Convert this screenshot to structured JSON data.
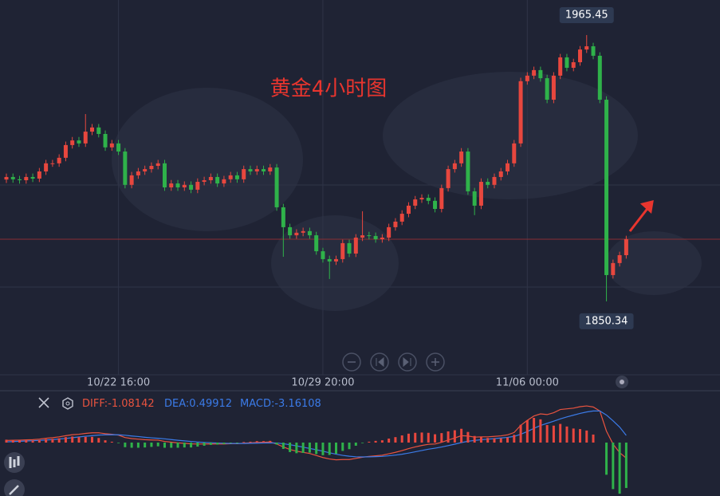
{
  "chart_data": [
    {
      "type": "candlestick",
      "title": "黄金4小时图",
      "categories": [
        null,
        null,
        null,
        null,
        null,
        null,
        null,
        null,
        null,
        null,
        null,
        null,
        null,
        null,
        null,
        null,
        null,
        "10/22 16:00",
        null,
        null,
        null,
        null,
        null,
        null,
        null,
        null,
        null,
        null,
        null,
        null,
        null,
        null,
        null,
        null,
        null,
        null,
        null,
        null,
        null,
        null,
        null,
        null,
        null,
        null,
        null,
        null,
        null,
        null,
        "10/29 20:00",
        null,
        null,
        null,
        null,
        null,
        null,
        null,
        null,
        null,
        null,
        null,
        null,
        null,
        null,
        null,
        null,
        null,
        null,
        null,
        null,
        null,
        null,
        null,
        null,
        null,
        null,
        null,
        null,
        null,
        null,
        "11/06 00:00",
        null,
        null,
        null,
        null,
        null,
        null,
        null,
        null,
        null,
        null,
        null,
        null,
        null,
        null,
        null
      ],
      "open": [
        1903.0,
        1904.1,
        1903.1,
        1902.7,
        1904.1,
        1903.4,
        1906.5,
        1910.0,
        1910.0,
        1912.4,
        1917.9,
        1919.9,
        1918.6,
        1923.7,
        1925.5,
        1922.7,
        1916.9,
        1918.6,
        1915.1,
        1900.7,
        1904.8,
        1906.5,
        1907.5,
        1908.9,
        1910.0,
        1899.6,
        1901.3,
        1899.6,
        1900.7,
        1898.6,
        1902.0,
        1902.7,
        1904.1,
        1901.3,
        1903.1,
        1904.8,
        1903.1,
        1907.5,
        1906.5,
        1907.5,
        1906.5,
        1908.2,
        1891.0,
        1882.4,
        1878.9,
        1880.0,
        1880.7,
        1878.9,
        1872.0,
        1868.6,
        1867.6,
        1868.6,
        1875.5,
        1871.0,
        1877.9,
        1878.9,
        1878.6,
        1877.2,
        1877.9,
        1882.4,
        1884.8,
        1888.2,
        1891.7,
        1894.4,
        1895.1,
        1893.8,
        1890.3,
        1899.3,
        1907.5,
        1910.0,
        1915.1,
        1897.9,
        1891.7,
        1902.0,
        1900.7,
        1904.1,
        1906.5,
        1910.0,
        1918.6,
        1945.5,
        1947.9,
        1950.3,
        1946.8,
        1937.5,
        1947.9,
        1955.8,
        1951.3,
        1953.7,
        1959.2,
        1960.6,
        1956.5,
        1937.5,
        1861.7,
        1866.9,
        1870.3
      ],
      "high": [
        1905.6,
        1905.6,
        1904.6,
        1905.6,
        1905.6,
        1908.0,
        1911.5,
        1911.5,
        1913.9,
        1919.4,
        1921.4,
        1921.4,
        1931.3,
        1927.0,
        1927.0,
        1924.2,
        1920.1,
        1920.1,
        1916.6,
        1906.3,
        1908.0,
        1909.0,
        1910.4,
        1911.5,
        1911.5,
        1902.8,
        1902.8,
        1902.2,
        1902.2,
        1903.5,
        1904.2,
        1905.6,
        1905.6,
        1904.6,
        1906.3,
        1906.3,
        1909.0,
        1909.0,
        1909.0,
        1909.0,
        1909.7,
        1909.7,
        1892.5,
        1883.9,
        1881.5,
        1882.2,
        1882.2,
        1880.4,
        1873.5,
        1870.1,
        1870.1,
        1877.0,
        1877.0,
        1879.4,
        1889.3,
        1880.4,
        1880.1,
        1879.4,
        1883.9,
        1886.3,
        1889.7,
        1893.2,
        1895.9,
        1896.6,
        1896.6,
        1895.3,
        1900.8,
        1909.0,
        1911.5,
        1916.6,
        1916.6,
        1899.4,
        1903.5,
        1903.5,
        1905.6,
        1908.0,
        1911.5,
        1920.1,
        1947.0,
        1949.4,
        1951.8,
        1951.8,
        1948.3,
        1949.4,
        1957.3,
        1957.3,
        1955.2,
        1960.7,
        1965.45,
        1962.1,
        1958.0,
        1939.0,
        1868.4,
        1871.8,
        1878.7
      ],
      "low": [
        1901.5,
        1901.6,
        1901.2,
        1901.2,
        1901.9,
        1901.9,
        1905.0,
        1908.5,
        1908.5,
        1910.9,
        1916.4,
        1917.1,
        1917.1,
        1922.2,
        1921.2,
        1915.4,
        1915.4,
        1913.6,
        1899.2,
        1899.2,
        1903.3,
        1905.0,
        1906.0,
        1907.4,
        1898.1,
        1898.1,
        1898.1,
        1898.1,
        1897.1,
        1897.1,
        1900.5,
        1901.2,
        1899.8,
        1899.8,
        1901.6,
        1901.6,
        1901.6,
        1905.0,
        1905.0,
        1905.0,
        1905.0,
        1889.5,
        1869.6,
        1877.4,
        1877.4,
        1878.5,
        1877.4,
        1870.5,
        1867.1,
        1860.0,
        1866.1,
        1867.1,
        1869.5,
        1869.5,
        1876.4,
        1877.1,
        1875.7,
        1875.7,
        1876.4,
        1880.9,
        1883.3,
        1886.7,
        1890.2,
        1892.9,
        1892.3,
        1888.8,
        1888.8,
        1897.8,
        1906.0,
        1908.5,
        1896.4,
        1887.6,
        1890.2,
        1899.2,
        1899.2,
        1902.6,
        1905.0,
        1908.5,
        1917.1,
        1944.0,
        1946.4,
        1945.3,
        1936.0,
        1936.0,
        1946.4,
        1949.8,
        1949.8,
        1952.2,
        1957.7,
        1955.0,
        1936.0,
        1850.34,
        1860.2,
        1865.4,
        1868.8
      ],
      "close": [
        1904.1,
        1903.1,
        1902.7,
        1904.1,
        1903.4,
        1906.5,
        1910.0,
        1910.0,
        1912.4,
        1917.9,
        1919.9,
        1918.6,
        1923.7,
        1925.5,
        1922.7,
        1916.9,
        1918.6,
        1915.1,
        1900.7,
        1904.8,
        1906.5,
        1907.5,
        1908.9,
        1910.0,
        1899.6,
        1901.3,
        1899.6,
        1900.7,
        1898.6,
        1902.0,
        1902.7,
        1904.1,
        1901.3,
        1903.1,
        1904.8,
        1903.1,
        1907.5,
        1906.5,
        1907.5,
        1906.5,
        1908.2,
        1891.0,
        1882.4,
        1878.9,
        1880.0,
        1880.7,
        1878.9,
        1872.0,
        1868.6,
        1867.6,
        1868.6,
        1875.5,
        1871.0,
        1877.9,
        1878.9,
        1878.6,
        1877.2,
        1877.9,
        1882.4,
        1884.8,
        1888.2,
        1891.7,
        1894.4,
        1895.1,
        1893.8,
        1890.3,
        1899.3,
        1907.5,
        1910.0,
        1915.1,
        1897.9,
        1891.7,
        1902.0,
        1900.7,
        1904.1,
        1906.5,
        1910.0,
        1918.6,
        1945.5,
        1947.9,
        1950.3,
        1946.8,
        1937.5,
        1947.9,
        1955.8,
        1951.3,
        1953.7,
        1959.2,
        1960.6,
        1956.5,
        1937.5,
        1861.7,
        1866.9,
        1870.3,
        1877.2
      ],
      "up_color": "#e8473e",
      "down_color": "#2fb24a",
      "ylim": [
        1818.6,
        1980.6
      ]
    },
    {
      "type": "macd",
      "series": [
        {
          "name": "DIFF:",
          "type": "line",
          "color": "#e8533f",
          "values": [
            0.15,
            0.16,
            0.17,
            0.19,
            0.2,
            0.24,
            0.3,
            0.34,
            0.4,
            0.48,
            0.55,
            0.58,
            0.64,
            0.68,
            0.68,
            0.62,
            0.58,
            0.52,
            0.35,
            0.28,
            0.24,
            0.2,
            0.18,
            0.17,
            0.08,
            0.03,
            -0.02,
            -0.05,
            -0.09,
            -0.1,
            -0.1,
            -0.09,
            -0.1,
            -0.1,
            -0.08,
            -0.08,
            -0.04,
            -0.02,
            0.01,
            0.02,
            0.04,
            -0.1,
            -0.3,
            -0.48,
            -0.6,
            -0.68,
            -0.76,
            -0.9,
            -1.04,
            -1.14,
            -1.2,
            -1.18,
            -1.18,
            -1.1,
            -1.02,
            -0.96,
            -0.92,
            -0.88,
            -0.78,
            -0.68,
            -0.56,
            -0.42,
            -0.3,
            -0.2,
            -0.12,
            -0.1,
            0.02,
            0.18,
            0.32,
            0.48,
            0.46,
            0.38,
            0.4,
            0.4,
            0.43,
            0.47,
            0.54,
            0.7,
            1.2,
            1.55,
            1.85,
            2.0,
            1.95,
            2.08,
            2.3,
            2.35,
            2.4,
            2.5,
            2.55,
            2.48,
            2.2,
            0.8,
            -0.1,
            -0.7,
            -1.08142
          ]
        },
        {
          "name": "DEA:",
          "type": "line",
          "color": "#3b7be8",
          "values": [
            0.05,
            0.07,
            0.09,
            0.11,
            0.13,
            0.15,
            0.18,
            0.21,
            0.25,
            0.29,
            0.34,
            0.39,
            0.44,
            0.48,
            0.52,
            0.54,
            0.55,
            0.54,
            0.51,
            0.46,
            0.42,
            0.37,
            0.33,
            0.3,
            0.26,
            0.21,
            0.16,
            0.12,
            0.08,
            0.04,
            0.01,
            -0.01,
            -0.03,
            -0.05,
            -0.06,
            -0.06,
            -0.06,
            -0.05,
            -0.04,
            -0.03,
            -0.02,
            -0.03,
            -0.08,
            -0.15,
            -0.23,
            -0.32,
            -0.41,
            -0.5,
            -0.6,
            -0.71,
            -0.81,
            -0.89,
            -0.95,
            -0.99,
            -1.0,
            -0.99,
            -0.98,
            -0.96,
            -0.92,
            -0.87,
            -0.81,
            -0.73,
            -0.64,
            -0.55,
            -0.46,
            -0.39,
            -0.31,
            -0.21,
            -0.11,
            0.0,
            0.09,
            0.15,
            0.2,
            0.24,
            0.28,
            0.32,
            0.36,
            0.43,
            0.58,
            0.77,
            0.99,
            1.19,
            1.34,
            1.49,
            1.65,
            1.79,
            1.91,
            2.03,
            2.13,
            2.2,
            2.2,
            1.92,
            1.52,
            1.08,
            0.49912
          ]
        },
        {
          "name": "MACD:",
          "type": "bar",
          "color": "#3b7be8",
          "up_color": "#e8473e",
          "down_color": "#2fb24a",
          "values": [
            0.2,
            0.18,
            0.16,
            0.16,
            0.14,
            0.18,
            0.24,
            0.26,
            0.3,
            0.38,
            0.42,
            0.38,
            0.4,
            0.4,
            0.32,
            0.16,
            0.06,
            -0.04,
            -0.32,
            -0.36,
            -0.36,
            -0.34,
            -0.3,
            -0.26,
            -0.36,
            -0.36,
            -0.36,
            -0.34,
            -0.34,
            -0.28,
            -0.22,
            -0.16,
            -0.14,
            -0.1,
            -0.04,
            -0.04,
            0.04,
            0.06,
            0.1,
            0.1,
            0.12,
            -0.14,
            -0.44,
            -0.66,
            -0.74,
            -0.72,
            -0.7,
            -0.8,
            -0.88,
            -0.86,
            -0.78,
            -0.58,
            -0.46,
            -0.22,
            -0.04,
            0.06,
            0.12,
            0.16,
            0.28,
            0.38,
            0.5,
            0.62,
            0.68,
            0.7,
            0.68,
            0.58,
            0.66,
            0.78,
            0.86,
            0.96,
            0.74,
            0.46,
            0.4,
            0.32,
            0.3,
            0.3,
            0.36,
            0.54,
            1.24,
            1.56,
            1.72,
            1.62,
            1.22,
            1.18,
            1.3,
            1.12,
            0.98,
            0.94,
            0.84,
            0.56,
            0.0,
            -2.24,
            -3.24,
            -3.56,
            -3.16108
          ]
        }
      ],
      "ylim": [
        -3.72,
        3.61
      ]
    }
  ]
}
